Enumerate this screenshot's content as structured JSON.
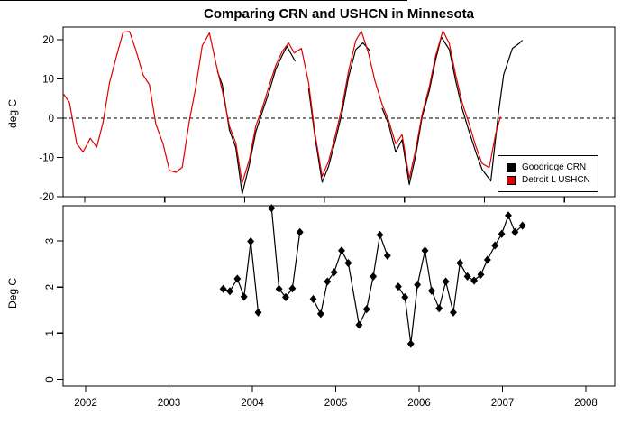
{
  "title": "Comparing CRN and USHCN in Minnesota",
  "top_panel": {
    "ylabel": "deg C"
  },
  "bottom_panel": {
    "ylabel": "Deg C"
  },
  "legend": {
    "items": [
      {
        "label": "Goodridge CRN",
        "color": "#000000"
      },
      {
        "label": "Detroit L USHCN",
        "color": "#e00000"
      }
    ]
  },
  "chart_data": [
    {
      "type": "line",
      "title": "Comparing CRN and USHCN in Minnesota",
      "xlabel": "",
      "ylabel": "deg C",
      "xlim": [
        2001.73,
        2008.63
      ],
      "ylim": [
        -21,
        22.5
      ],
      "xticks": [
        2002,
        2003,
        2004,
        2005,
        2006,
        2007,
        2008
      ],
      "yticks": [
        20,
        10,
        0,
        -10,
        -20
      ],
      "grid": false,
      "zero_line_style": "dashed",
      "legend_position": "inside-bottom-right",
      "series": [
        {
          "name": "Goodridge CRN",
          "color": "#000000",
          "segments": [
            [
              [
                2003.66,
                12.0
              ],
              [
                2003.72,
                8.5
              ],
              [
                2003.81,
                -3.0
              ],
              [
                2003.89,
                -7.5
              ],
              [
                2003.97,
                -19.3
              ],
              [
                2004.06,
                -11.8
              ],
              [
                2004.14,
                -3.5
              ],
              [
                2004.22,
                1.5
              ],
              [
                2004.31,
                7.0
              ],
              [
                2004.39,
                12.5
              ],
              [
                2004.47,
                16.0
              ],
              [
                2004.53,
                18.3
              ],
              [
                2004.63,
                14.6
              ]
            ],
            [
              [
                2004.8,
                7.5
              ],
              [
                2004.88,
                -4.8
              ],
              [
                2004.97,
                -16.3
              ],
              [
                2005.05,
                -12.3
              ],
              [
                2005.14,
                -5.3
              ],
              [
                2005.22,
                1.5
              ],
              [
                2005.3,
                10.5
              ],
              [
                2005.39,
                17.5
              ],
              [
                2005.48,
                19.2
              ],
              [
                2005.56,
                17.3
              ]
            ],
            [
              [
                2005.72,
                2.5
              ],
              [
                2005.8,
                -1.5
              ],
              [
                2005.89,
                -8.6
              ],
              [
                2005.97,
                -5.5
              ],
              [
                2006.06,
                -16.9
              ],
              [
                2006.14,
                -9.5
              ],
              [
                2006.22,
                0.3
              ],
              [
                2006.31,
                7.0
              ],
              [
                2006.39,
                15.0
              ],
              [
                2006.46,
                20.7
              ],
              [
                2006.56,
                17.5
              ],
              [
                2006.64,
                9.5
              ],
              [
                2006.72,
                2.5
              ],
              [
                2006.81,
                -3.5
              ],
              [
                2006.89,
                -8.5
              ],
              [
                2006.97,
                -13.0
              ],
              [
                2007.08,
                -16.0
              ],
              [
                2007.17,
                0.5
              ],
              [
                2007.24,
                11.1
              ],
              [
                2007.35,
                17.8
              ],
              [
                2007.43,
                19.0
              ],
              [
                2007.47,
                19.8
              ]
            ]
          ]
        },
        {
          "name": "Detroit L USHCN",
          "color": "#e00000",
          "segments": [
            [
              [
                2001.73,
                6.3
              ],
              [
                2001.81,
                4.0
              ],
              [
                2001.9,
                -6.5
              ],
              [
                2001.98,
                -8.6
              ],
              [
                2002.07,
                -5.1
              ],
              [
                2002.15,
                -7.4
              ],
              [
                2002.23,
                -1.0
              ],
              [
                2002.31,
                9.0
              ],
              [
                2002.4,
                16.0
              ],
              [
                2002.48,
                21.9
              ],
              [
                2002.56,
                22.1
              ],
              [
                2002.64,
                17.3
              ],
              [
                2002.73,
                11.0
              ],
              [
                2002.81,
                8.5
              ],
              [
                2002.89,
                -1.5
              ],
              [
                2002.98,
                -6.5
              ],
              [
                2003.06,
                -13.3
              ],
              [
                2003.14,
                -13.8
              ],
              [
                2003.22,
                -12.5
              ],
              [
                2003.31,
                -0.5
              ],
              [
                2003.39,
                8.0
              ],
              [
                2003.47,
                18.5
              ],
              [
                2003.56,
                21.7
              ],
              [
                2003.64,
                14.0
              ],
              [
                2003.72,
                7.0
              ],
              [
                2003.81,
                -2.0
              ],
              [
                2003.89,
                -6.3
              ],
              [
                2003.97,
                -16.5
              ],
              [
                2004.06,
                -10.5
              ],
              [
                2004.14,
                -2.0
              ],
              [
                2004.22,
                2.5
              ],
              [
                2004.31,
                8.5
              ],
              [
                2004.39,
                13.5
              ],
              [
                2004.47,
                17.0
              ],
              [
                2004.55,
                19.2
              ],
              [
                2004.62,
                16.6
              ],
              [
                2004.71,
                17.8
              ],
              [
                2004.8,
                9.0
              ],
              [
                2004.88,
                -4.0
              ],
              [
                2004.97,
                -14.8
              ],
              [
                2005.05,
                -11.0
              ],
              [
                2005.14,
                -4.0
              ],
              [
                2005.22,
                3.0
              ],
              [
                2005.3,
                12.0
              ],
              [
                2005.39,
                19.8
              ],
              [
                2005.46,
                22.2
              ],
              [
                2005.55,
                16.5
              ],
              [
                2005.63,
                9.5
              ],
              [
                2005.72,
                3.5
              ],
              [
                2005.8,
                -0.5
              ],
              [
                2005.89,
                -6.5
              ],
              [
                2005.97,
                -4.2
              ],
              [
                2006.06,
                -15.3
              ],
              [
                2006.14,
                -8.0
              ],
              [
                2006.22,
                1.0
              ],
              [
                2006.31,
                8.0
              ],
              [
                2006.39,
                16.0
              ],
              [
                2006.48,
                22.3
              ],
              [
                2006.56,
                19.0
              ],
              [
                2006.64,
                11.0
              ],
              [
                2006.72,
                4.0
              ],
              [
                2006.81,
                -1.5
              ],
              [
                2006.89,
                -7.0
              ],
              [
                2006.97,
                -11.5
              ],
              [
                2007.06,
                -12.6
              ],
              [
                2007.14,
                -4.0
              ],
              [
                2007.2,
                0.3
              ]
            ]
          ]
        }
      ]
    },
    {
      "type": "line",
      "marker": "diamond",
      "xlabel": "",
      "ylabel": "Deg C",
      "xlim": [
        2001.73,
        2008.35
      ],
      "ylim": [
        -0.1,
        3.8
      ],
      "xticks": [
        2002,
        2003,
        2004,
        2005,
        2006,
        2007,
        2008
      ],
      "yticks": [
        0,
        1,
        2,
        3
      ],
      "grid": false,
      "series": [
        {
          "name": "",
          "color": "#000000",
          "segments": [
            [
              [
                2003.65,
                1.96
              ],
              [
                2003.73,
                1.91
              ],
              [
                2003.82,
                2.18
              ],
              [
                2003.9,
                1.79
              ],
              [
                2003.98,
                2.99
              ],
              [
                2004.07,
                1.45
              ]
            ],
            [
              [
                2004.23,
                3.71
              ],
              [
                2004.32,
                1.96
              ],
              [
                2004.4,
                1.78
              ],
              [
                2004.48,
                1.97
              ],
              [
                2004.57,
                3.19
              ]
            ],
            [
              [
                2004.73,
                1.74
              ],
              [
                2004.82,
                1.42
              ],
              [
                2004.9,
                2.12
              ],
              [
                2004.98,
                2.32
              ],
              [
                2005.07,
                2.79
              ],
              [
                2005.15,
                2.52
              ],
              [
                2005.28,
                1.18
              ],
              [
                2005.37,
                1.52
              ],
              [
                2005.45,
                2.23
              ],
              [
                2005.53,
                3.13
              ],
              [
                2005.62,
                2.68
              ]
            ],
            [
              [
                2005.75,
                2.01
              ],
              [
                2005.83,
                1.78
              ],
              [
                2005.9,
                0.77
              ],
              [
                2005.98,
                2.05
              ],
              [
                2006.07,
                2.79
              ],
              [
                2006.15,
                1.92
              ],
              [
                2006.24,
                1.54
              ],
              [
                2006.32,
                2.12
              ],
              [
                2006.41,
                1.45
              ],
              [
                2006.49,
                2.52
              ],
              [
                2006.58,
                2.23
              ],
              [
                2006.66,
                2.14
              ],
              [
                2006.74,
                2.27
              ],
              [
                2006.82,
                2.59
              ],
              [
                2006.91,
                2.9
              ],
              [
                2006.99,
                3.15
              ],
              [
                2007.07,
                3.55
              ],
              [
                2007.15,
                3.19
              ],
              [
                2007.24,
                3.33
              ]
            ]
          ]
        }
      ]
    }
  ]
}
